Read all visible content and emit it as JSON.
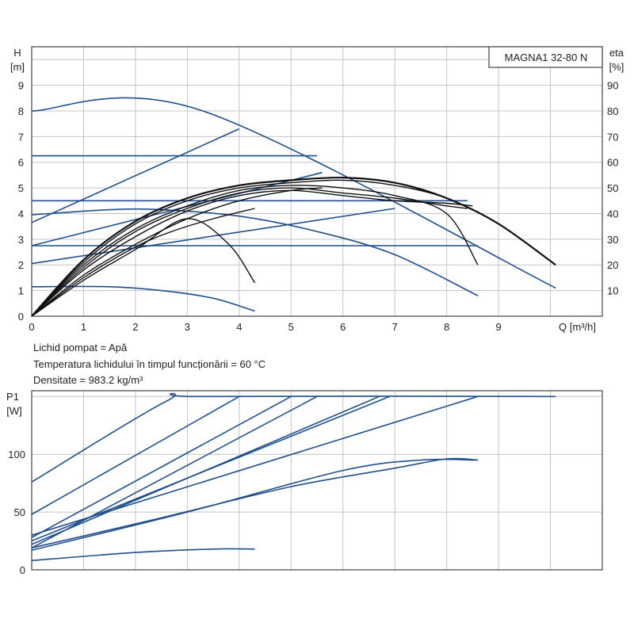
{
  "chart_data": [
    {
      "type": "line",
      "title": "MAGNA1 32-80 N",
      "ylabel": "H",
      "yunit": "[m]",
      "y2label": "eta",
      "y2unit": "[%]",
      "xlabel": "Q [m³/h]",
      "xlim": [
        0,
        11
      ],
      "ylim": [
        0,
        10.5
      ],
      "y2lim": [
        0,
        105
      ],
      "x_ticks": [
        "0",
        "1",
        "2",
        "3",
        "4",
        "5",
        "6",
        "7",
        "8",
        "9"
      ],
      "y_ticks": [
        "0",
        "1",
        "2",
        "3",
        "4",
        "5",
        "6",
        "7",
        "8",
        "9"
      ],
      "y2_ticks": [
        "10",
        "20",
        "30",
        "40",
        "50",
        "60",
        "70",
        "80",
        "90"
      ],
      "grid": true,
      "head_series": [
        {
          "points": [
            [
              0,
              8.0
            ],
            [
              3.3,
              8.0
            ],
            [
              10.1,
              1.1
            ]
          ]
        },
        {
          "points": [
            [
              0,
              6.25
            ],
            [
              5.5,
              6.25
            ]
          ]
        },
        {
          "points": [
            [
              0,
              4.5
            ],
            [
              8.4,
              4.5
            ]
          ]
        },
        {
          "points": [
            [
              0,
              2.75
            ],
            [
              8.6,
              2.75
            ]
          ]
        },
        {
          "points": [
            [
              0,
              3.65
            ],
            [
              4.0,
              7.3
            ]
          ]
        },
        {
          "points": [
            [
              0,
              2.75
            ],
            [
              5.6,
              5.6
            ]
          ]
        },
        {
          "points": [
            [
              0,
              2.05
            ],
            [
              7.0,
              4.2
            ]
          ]
        },
        {
          "points": [
            [
              0,
              3.95
            ],
            [
              1.5,
              4.15
            ],
            [
              2.5,
              4.15
            ],
            [
              4.0,
              3.9
            ],
            [
              5.5,
              3.3
            ],
            [
              7.0,
              2.4
            ],
            [
              8.6,
              0.8
            ]
          ]
        },
        {
          "points": [
            [
              0,
              1.15
            ],
            [
              1.5,
              1.15
            ],
            [
              2.5,
              1.0
            ],
            [
              3.5,
              0.7
            ],
            [
              4.3,
              0.2
            ]
          ]
        }
      ],
      "eta_series": [
        {
          "points": [
            [
              0,
              0
            ],
            [
              1,
              22
            ],
            [
              2,
              37
            ],
            [
              3,
              46
            ],
            [
              4,
              51
            ],
            [
              5,
              53
            ],
            [
              6,
              54
            ],
            [
              7,
              52
            ],
            [
              8,
              46
            ],
            [
              9,
              36
            ],
            [
              10.1,
              20
            ]
          ]
        },
        {
          "points": [
            [
              0,
              0
            ],
            [
              1,
              21
            ],
            [
              2,
              36
            ],
            [
              3,
              45
            ],
            [
              4,
              50
            ],
            [
              5,
              52
            ],
            [
              6,
              53
            ],
            [
              7,
              51
            ],
            [
              8,
              46
            ],
            [
              9,
              36
            ],
            [
              10.1,
              20
            ]
          ]
        },
        {
          "points": [
            [
              0,
              0
            ],
            [
              1,
              20
            ],
            [
              2,
              34
            ],
            [
              3,
              43
            ],
            [
              4,
              49
            ],
            [
              5,
              51
            ],
            [
              6,
              50
            ],
            [
              7,
              47
            ],
            [
              8,
              40
            ],
            [
              8.6,
              20
            ]
          ]
        },
        {
          "points": [
            [
              0,
              0
            ],
            [
              1,
              19
            ],
            [
              2,
              33
            ],
            [
              3,
              42
            ],
            [
              4,
              48
            ],
            [
              5,
              50
            ],
            [
              6,
              48
            ],
            [
              7,
              46
            ],
            [
              8,
              43
            ],
            [
              8.4,
              42
            ]
          ]
        },
        {
          "points": [
            [
              0,
              0
            ],
            [
              1,
              18
            ],
            [
              2,
              31
            ],
            [
              3,
              41
            ],
            [
              4,
              47
            ],
            [
              5,
              49
            ],
            [
              6,
              47
            ],
            [
              7,
              45
            ],
            [
              8,
              44
            ],
            [
              8.5,
              43
            ]
          ]
        },
        {
          "points": [
            [
              0,
              0
            ],
            [
              1,
              16
            ],
            [
              2,
              28
            ],
            [
              3,
              38
            ],
            [
              4,
              45
            ],
            [
              5,
              49
            ],
            [
              5.6,
              50
            ]
          ]
        },
        {
          "points": [
            [
              0,
              0
            ],
            [
              1,
              15
            ],
            [
              2,
              27
            ],
            [
              2.7,
              33
            ],
            [
              3.5,
              38
            ],
            [
              4.3,
              42
            ]
          ]
        },
        {
          "points": [
            [
              0,
              0
            ],
            [
              1,
              14
            ],
            [
              2,
              26
            ],
            [
              3,
              38
            ],
            [
              3.8,
              28
            ],
            [
              4.3,
              13
            ]
          ]
        }
      ],
      "annotations": [
        "Lichid pompat = Apă",
        "Temperatura lichidului în timpul funcționării = 60 °C",
        "Densitate = 983.2 kg/m³"
      ]
    },
    {
      "type": "line",
      "ylabel": "P1",
      "yunit": "[W]",
      "xlim": [
        0,
        11
      ],
      "ylim": [
        0,
        155
      ],
      "y_ticks": [
        "0",
        "50",
        "100"
      ],
      "grid": true,
      "series": [
        {
          "points": [
            [
              0,
              76
            ],
            [
              2.6,
              146
            ],
            [
              3.3,
              150
            ],
            [
              10.1,
              150
            ]
          ]
        },
        {
          "points": [
            [
              0,
              48
            ],
            [
              4.0,
              150
            ]
          ]
        },
        {
          "points": [
            [
              0,
              28
            ],
            [
              5.0,
              150
            ]
          ]
        },
        {
          "points": [
            [
              0,
              19
            ],
            [
              5.5,
              150
            ]
          ]
        },
        {
          "points": [
            [
              0,
              22
            ],
            [
              6.7,
              150
            ]
          ]
        },
        {
          "points": [
            [
              0,
              25
            ],
            [
              6.9,
              150
            ]
          ]
        },
        {
          "points": [
            [
              0,
              30
            ],
            [
              8.6,
              150
            ]
          ]
        },
        {
          "points": [
            [
              0,
              19
            ],
            [
              2.5,
              45
            ],
            [
              5.0,
              72
            ],
            [
              7.0,
              88
            ],
            [
              8.0,
              96
            ],
            [
              8.6,
              95
            ]
          ]
        },
        {
          "points": [
            [
              0,
              17
            ],
            [
              3.0,
              50
            ],
            [
              6.0,
              86
            ],
            [
              7.5,
              95
            ],
            [
              8.6,
              95
            ]
          ]
        },
        {
          "points": [
            [
              0,
              8
            ],
            [
              2,
              15
            ],
            [
              3.5,
              18
            ],
            [
              4.3,
              18
            ]
          ]
        }
      ]
    }
  ]
}
